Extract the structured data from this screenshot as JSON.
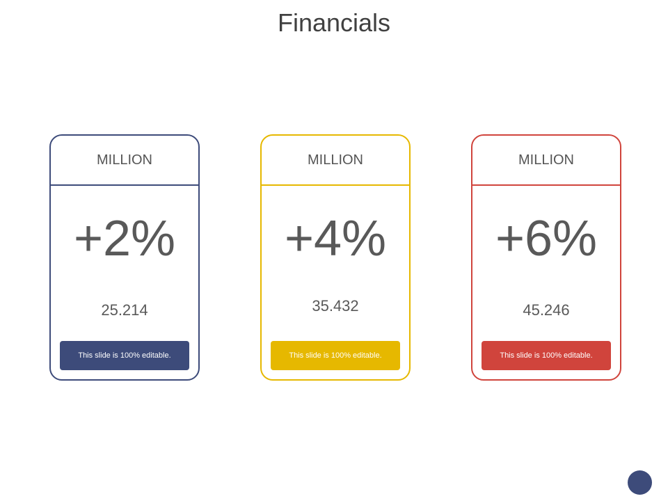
{
  "title": "Financials",
  "cards": [
    {
      "header": "MILLION",
      "percent": "+2%",
      "value": "25.214",
      "button_label": "This slide is 100% editable.",
      "color": "#3d4b7a"
    },
    {
      "header": "MILLION",
      "percent": "+4%",
      "value": "35.432",
      "button_label": "This slide is 100% editable.",
      "color": "#e6b800"
    },
    {
      "header": "MILLION",
      "percent": "+6%",
      "value": "45.246",
      "button_label": "This slide is 100% editable.",
      "color": "#d0443c"
    }
  ],
  "fab_color": "#3d4b7a"
}
